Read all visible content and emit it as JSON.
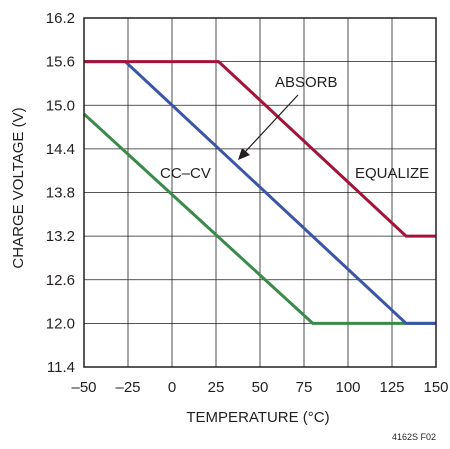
{
  "chart_data": {
    "type": "line",
    "xlabel": "TEMPERATURE (°C)",
    "ylabel": "CHARGE VOLTAGE (V)",
    "xlim": [
      -50,
      150
    ],
    "ylim": [
      11.4,
      16.2
    ],
    "x_ticks": [
      "–50",
      "–25",
      "0",
      "25",
      "50",
      "75",
      "100",
      "125",
      "150"
    ],
    "y_ticks": [
      "11.4",
      "12.0",
      "12.6",
      "13.2",
      "13.8",
      "14.4",
      "15.0",
      "15.6",
      "16.2"
    ],
    "grid": true,
    "legend": "none",
    "series": [
      {
        "name": "CC–CV",
        "color": "#3a8a4a",
        "x": [
          -50,
          80,
          150
        ],
        "y": [
          14.88,
          12.0,
          12.0
        ]
      },
      {
        "name": "ABSORB",
        "color": "#3b56a8",
        "x": [
          -50,
          -26.5,
          133,
          150
        ],
        "y": [
          15.6,
          15.6,
          12.0,
          12.0
        ]
      },
      {
        "name": "EQUALIZE",
        "color": "#a3133a",
        "x": [
          -50,
          26.5,
          133,
          150
        ],
        "y": [
          15.6,
          15.6,
          13.2,
          13.2
        ]
      }
    ],
    "annotations": [
      {
        "text": "ABSORB",
        "arrow_to_series": "ABSORB"
      },
      {
        "text": "CC–CV"
      },
      {
        "text": "EQUALIZE"
      }
    ],
    "figure_id": "4162S F02"
  }
}
